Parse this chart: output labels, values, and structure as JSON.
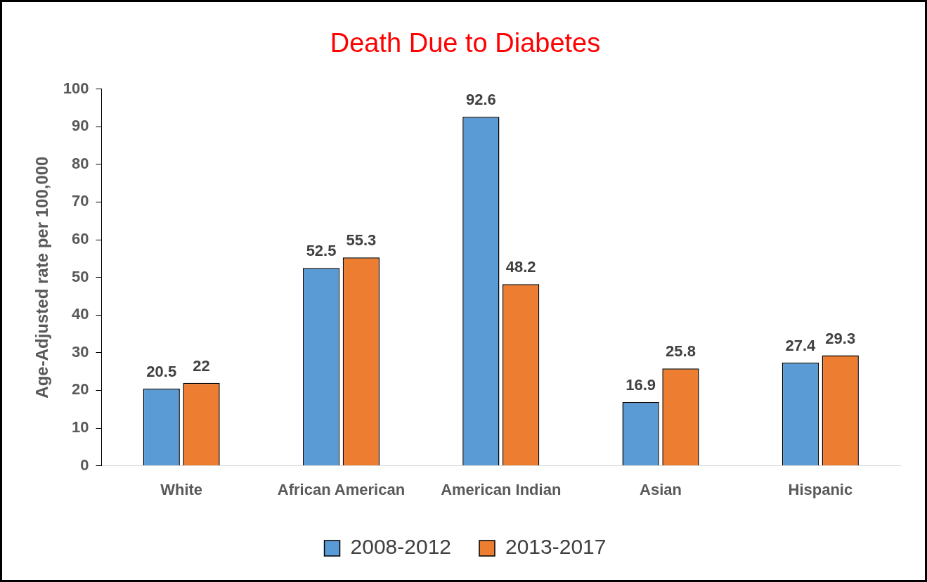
{
  "chart_data": {
    "type": "bar",
    "title": "Death Due to Diabetes",
    "ylabel": "Age-Adjusted rate per 100,000",
    "categories": [
      "White",
      "African American",
      "American Indian",
      "Asian",
      "Hispanic"
    ],
    "series": [
      {
        "name": "2008-2012",
        "color": "#5b9bd5",
        "values": [
          20.5,
          52.5,
          92.6,
          16.9,
          27.4
        ]
      },
      {
        "name": "2013-2017",
        "color": "#ed7d31",
        "values": [
          22,
          55.3,
          48.2,
          25.8,
          29.3
        ]
      }
    ],
    "ylim": [
      0,
      100
    ],
    "yticks": [
      0,
      10,
      20,
      30,
      40,
      50,
      60,
      70,
      80,
      90,
      100
    ],
    "data_labels": true,
    "legend": "bottom",
    "grid": false
  }
}
